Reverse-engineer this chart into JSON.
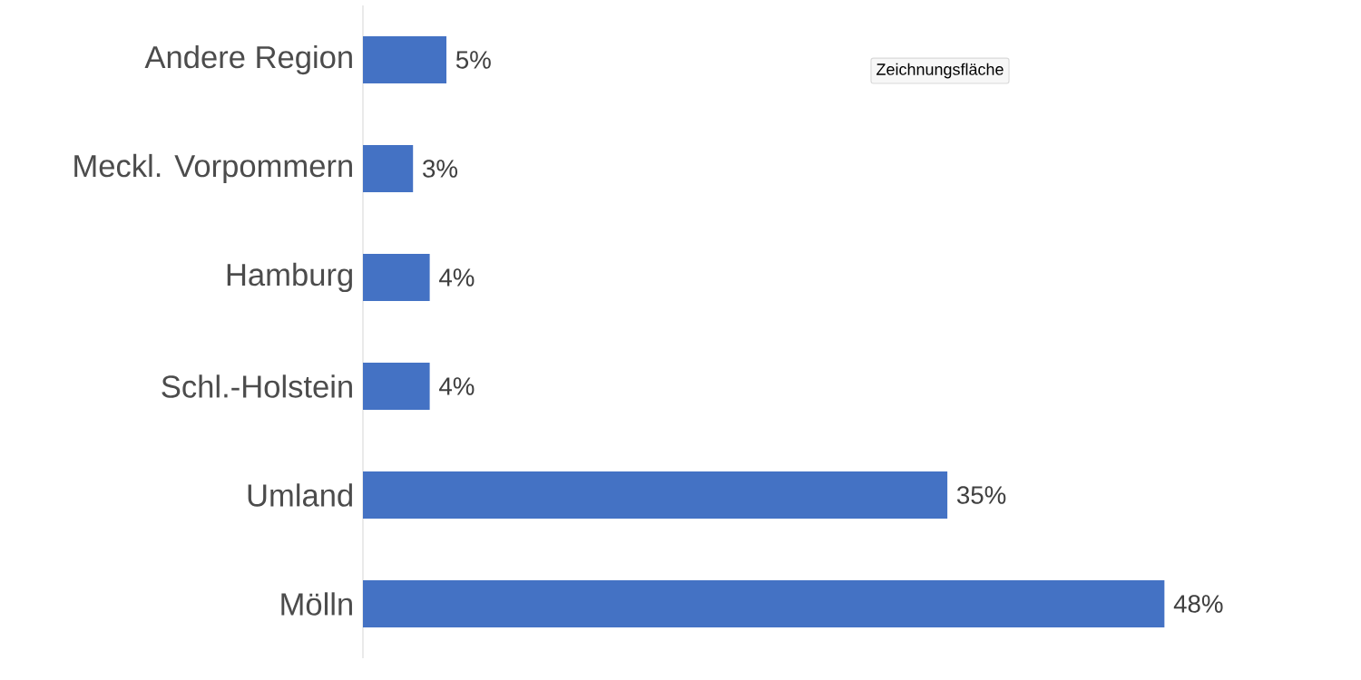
{
  "chart_data": {
    "type": "bar",
    "orientation": "horizontal",
    "categories": [
      "Andere Region",
      "Meckl. Vorpommern",
      "Hamburg",
      "Schl.-Holstein",
      "Umland",
      "Mölln"
    ],
    "values": [
      5,
      3,
      4,
      4,
      35,
      48
    ],
    "value_labels": [
      "5%",
      "3%",
      "4%",
      "4%",
      "35%",
      "48%"
    ],
    "color": "#4472c4",
    "annotations": [
      "Zeichnungsfläche"
    ]
  }
}
